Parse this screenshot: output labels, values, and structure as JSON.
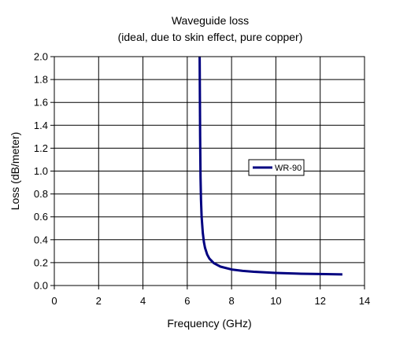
{
  "chart_data": {
    "type": "line",
    "title": "Waveguide loss",
    "subtitle": "(ideal, due to skin effect, pure copper)",
    "xlabel": "Frequency (GHz)",
    "ylabel": "Loss (dB/meter)",
    "xlim": [
      0,
      14
    ],
    "ylim": [
      0,
      2.0
    ],
    "x_ticks": [
      0,
      2,
      4,
      6,
      8,
      10,
      12,
      14
    ],
    "y_ticks": [
      "0.0",
      "0.2",
      "0.4",
      "0.6",
      "0.8",
      "1.0",
      "1.2",
      "1.4",
      "1.6",
      "1.8",
      "2.0"
    ],
    "grid": true,
    "legend_position": "right",
    "series": [
      {
        "name": "WR-90",
        "color": "#000080",
        "x": [
          6.56,
          6.58,
          6.6,
          6.62,
          6.65,
          6.7,
          6.75,
          6.8,
          6.9,
          7.0,
          7.2,
          7.5,
          8.0,
          8.5,
          9.0,
          10.0,
          11.0,
          12.0,
          13.0
        ],
        "y": [
          2.0,
          1.3,
          0.95,
          0.75,
          0.6,
          0.46,
          0.38,
          0.33,
          0.27,
          0.235,
          0.195,
          0.165,
          0.14,
          0.128,
          0.12,
          0.11,
          0.104,
          0.1,
          0.097
        ]
      }
    ]
  }
}
